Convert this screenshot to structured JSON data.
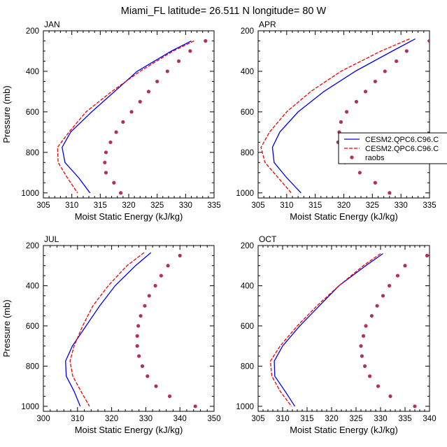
{
  "figure_title": "Miami_FL  latitude= 26.511 N longitude= 80 W",
  "colors": {
    "cesm_a": "#0000ee",
    "cesm_b": "#ee0000",
    "raobs": "#b03060"
  },
  "legend": {
    "panel": "APR",
    "entries": [
      "CESM2.QPC6.C96.C",
      "CESM2.QPC6.C96.C",
      "raobs"
    ]
  },
  "chart_data": [
    {
      "type": "line",
      "title": "JAN",
      "xlabel": "Moist Static Energy (kJ/kg)",
      "ylabel": "Pressure (mb)",
      "xlim": [
        305,
        335
      ],
      "ylim": [
        1025,
        200
      ],
      "xticks": [
        "305",
        "310",
        "315",
        "320",
        "325",
        "330",
        "335"
      ],
      "yticks": [
        "200",
        "400",
        "600",
        "800",
        "1000"
      ],
      "pressure": [
        250,
        300,
        400,
        500,
        600,
        700,
        775,
        850,
        925,
        1000
      ],
      "series": [
        {
          "name": "CESM2.QPC6.C96.C",
          "style": "solid",
          "values": [
            331.0,
            327.5,
            321.5,
            317.5,
            313.5,
            309.8,
            308.3,
            308.8,
            311.2,
            313.2
          ]
        },
        {
          "name": "CESM2.QPC6.C96.C",
          "style": "dashed",
          "values": [
            331.5,
            327.8,
            322.0,
            317.0,
            312.5,
            309.5,
            307.5,
            307.6,
            309.2,
            311.0
          ]
        },
        {
          "name": "raobs",
          "style": "dots",
          "pressure": [
            250,
            300,
            350,
            400,
            450,
            500,
            550,
            600,
            650,
            700,
            750,
            800,
            850,
            900,
            950,
            1000
          ],
          "values": [
            333.5,
            330.8,
            328.8,
            326.8,
            325.0,
            323.5,
            322.0,
            320.5,
            319.0,
            317.8,
            316.8,
            316.0,
            315.8,
            316.0,
            317.4,
            318.6
          ]
        }
      ]
    },
    {
      "type": "line",
      "title": "APR",
      "xlabel": "Moist Static Energy (kJ/kg)",
      "ylabel": "",
      "xlim": [
        305,
        335
      ],
      "ylim": [
        1025,
        200
      ],
      "xticks": [
        "305",
        "310",
        "315",
        "320",
        "325",
        "330",
        "335"
      ],
      "yticks": [
        "200",
        "400",
        "600",
        "800",
        "1000"
      ],
      "pressure": [
        240,
        300,
        400,
        500,
        600,
        700,
        775,
        850,
        925,
        1000
      ],
      "series": [
        {
          "name": "CESM2.QPC6.C96.C",
          "style": "solid",
          "values": [
            332.5,
            328.5,
            322.0,
            316.5,
            312.0,
            308.8,
            307.5,
            307.8,
            310.0,
            312.5
          ]
        },
        {
          "name": "CESM2.QPC6.C96.C",
          "style": "dashed",
          "values": [
            331.5,
            326.5,
            319.5,
            314.2,
            310.0,
            307.0,
            305.5,
            306.2,
            308.5,
            310.8
          ]
        },
        {
          "name": "raobs",
          "style": "dots",
          "pressure": [
            250,
            300,
            350,
            400,
            450,
            500,
            550,
            600,
            650,
            700,
            750,
            800,
            850,
            900,
            950,
            1000
          ],
          "values": [
            335.0,
            331.0,
            329.2,
            327.2,
            325.5,
            323.8,
            322.2,
            320.5,
            319.5,
            319.2,
            319.0,
            319.5,
            320.2,
            322.8,
            325.5,
            328.0
          ]
        }
      ]
    },
    {
      "type": "line",
      "title": "JUL",
      "xlabel": "Moist Static Energy (kJ/kg)",
      "ylabel": "Pressure (mb)",
      "xlim": [
        300,
        350
      ],
      "ylim": [
        1025,
        200
      ],
      "xticks": [
        "300",
        "310",
        "320",
        "330",
        "340",
        "350"
      ],
      "yticks": [
        "200",
        "400",
        "600",
        "800",
        "1000"
      ],
      "pressure": [
        235,
        300,
        400,
        500,
        600,
        700,
        775,
        850,
        925,
        1000
      ],
      "series": [
        {
          "name": "CESM2.QPC6.C96.C",
          "style": "solid",
          "values": [
            331.5,
            327.0,
            321.0,
            316.5,
            312.5,
            308.5,
            306.5,
            306.7,
            309.0,
            310.8
          ]
        },
        {
          "name": "CESM2.QPC6.C96.C",
          "style": "dashed",
          "values": [
            329.5,
            324.5,
            319.0,
            314.5,
            311.5,
            309.0,
            307.8,
            308.6,
            311.0,
            313.5
          ]
        },
        {
          "name": "raobs",
          "style": "dots",
          "pressure": [
            250,
            300,
            350,
            400,
            450,
            500,
            550,
            600,
            650,
            700,
            750,
            800,
            850,
            900,
            950,
            1000
          ],
          "values": [
            340.0,
            336.5,
            334.5,
            332.8,
            331.0,
            329.7,
            328.5,
            327.8,
            327.5,
            327.5,
            328.0,
            329.0,
            330.5,
            333.0,
            337.0,
            344.5
          ]
        }
      ]
    },
    {
      "type": "line",
      "title": "OCT",
      "xlabel": "Moist Static Energy (kJ/kg)",
      "ylabel": "",
      "xlim": [
        305,
        340
      ],
      "ylim": [
        1025,
        200
      ],
      "xticks": [
        "305",
        "310",
        "315",
        "320",
        "325",
        "330",
        "335",
        "340"
      ],
      "yticks": [
        "200",
        "400",
        "600",
        "800",
        "1000"
      ],
      "pressure": [
        240,
        300,
        400,
        500,
        600,
        700,
        775,
        850,
        925,
        1000
      ],
      "series": [
        {
          "name": "CESM2.QPC6.C96.C",
          "style": "solid",
          "values": [
            330.5,
            327.0,
            321.5,
            317.5,
            313.5,
            310.0,
            308.3,
            308.4,
            310.5,
            312.5
          ]
        },
        {
          "name": "CESM2.QPC6.C96.C",
          "style": "dashed",
          "values": [
            330.0,
            326.5,
            321.5,
            317.0,
            313.0,
            309.5,
            307.5,
            307.8,
            309.5,
            311.8
          ]
        },
        {
          "name": "raobs",
          "style": "dots",
          "pressure": [
            250,
            300,
            350,
            400,
            450,
            500,
            550,
            600,
            650,
            700,
            750,
            800,
            850,
            900,
            950,
            1000
          ],
          "values": [
            339.5,
            335.0,
            333.5,
            331.8,
            330.5,
            329.3,
            328.2,
            327.0,
            326.5,
            326.0,
            326.2,
            326.8,
            327.8,
            329.5,
            332.0,
            337.0
          ]
        }
      ]
    }
  ]
}
